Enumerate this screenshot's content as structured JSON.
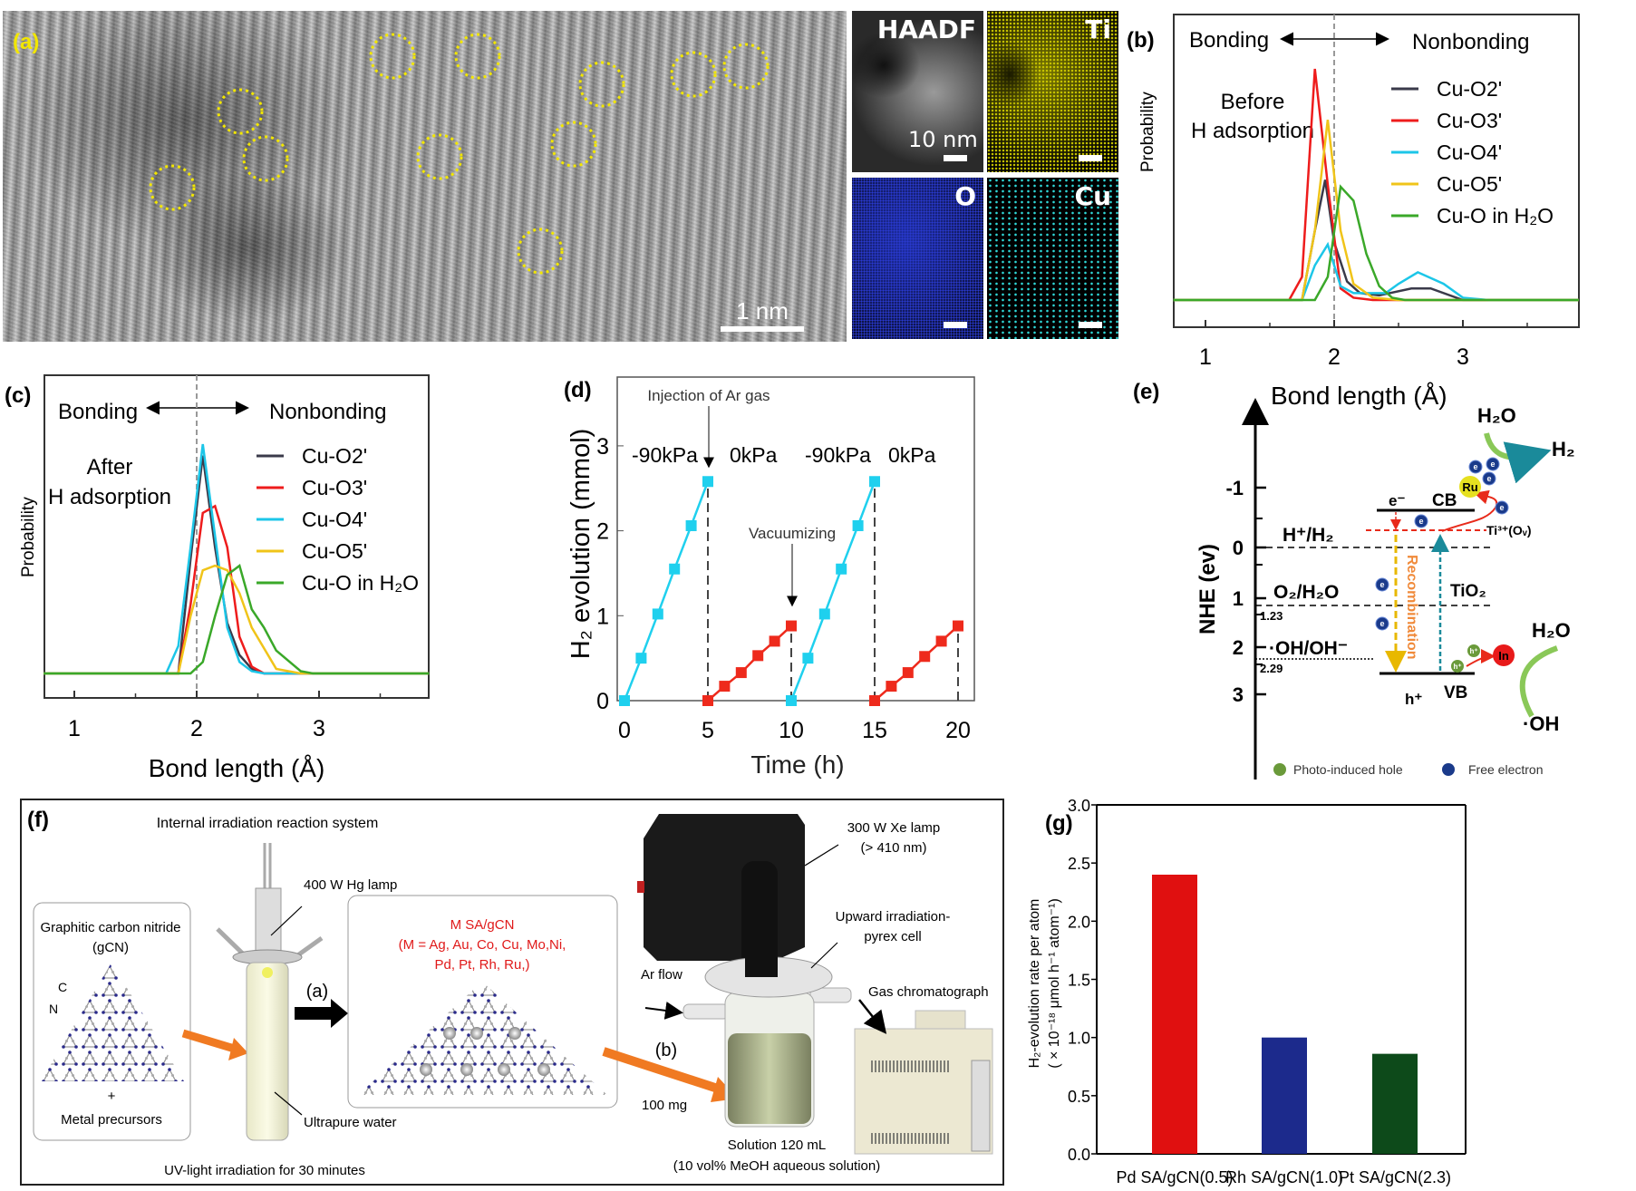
{
  "panel_a": {
    "label": "(a)",
    "scale_bar": "1 nm",
    "eds": {
      "haadf": "HAADF",
      "ti": "Ti",
      "o": "O",
      "cu": "Cu",
      "scale": "10 nm"
    },
    "colors": {
      "circle": "#f2e600",
      "label": "#f2e600",
      "ti": "#d8d600",
      "o": "#1a2fb0",
      "cu": "#2fd8d8"
    }
  },
  "chart_data": [
    {
      "id": "b",
      "type": "line",
      "panel_label": "(b)",
      "xlabel": "Bond length (Å)",
      "ylabel": "Probability",
      "xlim": [
        0.75,
        3.9
      ],
      "xticks": [
        "1",
        "2",
        "3"
      ],
      "annotation_left": "Bonding",
      "annotation_right": "Nonbonding",
      "state": [
        "Before",
        "H adsorption"
      ],
      "reference_line_x": 2,
      "legend": "top-right",
      "series": [
        {
          "name": "Cu-O2'",
          "color": "#3a3a4a",
          "x": [
            0.75,
            1.75,
            1.85,
            1.93,
            2.0,
            2.1,
            2.2,
            2.35,
            2.6,
            2.75,
            3.0,
            3.9
          ],
          "y": [
            0,
            0,
            0.3,
            0.52,
            0.25,
            0.08,
            0.03,
            0.02,
            0.05,
            0.05,
            0,
            0
          ]
        },
        {
          "name": "Cu-O3'",
          "color": "#ee1c1c",
          "x": [
            0.75,
            1.65,
            1.75,
            1.85,
            1.95,
            2.05,
            2.15,
            2.3,
            3.9
          ],
          "y": [
            0,
            0,
            0.1,
            1.0,
            0.5,
            0.05,
            0.01,
            0,
            0
          ]
        },
        {
          "name": "Cu-O4'",
          "color": "#1cc6e8",
          "x": [
            0.75,
            1.75,
            1.85,
            1.95,
            2.05,
            2.15,
            2.4,
            2.5,
            2.65,
            2.85,
            3.0,
            3.2,
            3.9
          ],
          "y": [
            0,
            0,
            0.15,
            0.24,
            0.06,
            0.03,
            0.03,
            0.07,
            0.12,
            0.07,
            0.01,
            0,
            0
          ]
        },
        {
          "name": "Cu-O5'",
          "color": "#f0c419",
          "x": [
            0.75,
            1.75,
            1.85,
            1.95,
            2.05,
            2.15,
            2.3,
            2.5,
            3.9
          ],
          "y": [
            0,
            0,
            0.3,
            0.78,
            0.3,
            0.07,
            0.01,
            0,
            0
          ]
        },
        {
          "name": "Cu-O in H₂O",
          "color": "#3aa829",
          "x": [
            0.75,
            1.85,
            1.95,
            2.05,
            2.15,
            2.25,
            2.35,
            2.45,
            2.55,
            3.9
          ],
          "y": [
            0,
            0,
            0.1,
            0.49,
            0.43,
            0.2,
            0.06,
            0.01,
            0,
            0
          ]
        }
      ]
    },
    {
      "id": "c",
      "type": "line",
      "panel_label": "(c)",
      "xlabel": "Bond length (Å)",
      "ylabel": "Probability",
      "xlim": [
        0.75,
        3.9
      ],
      "xticks": [
        "1",
        "2",
        "3"
      ],
      "annotation_left": "Bonding",
      "annotation_right": "Nonbonding",
      "state": [
        "After",
        "H adsorption"
      ],
      "reference_line_x": 2,
      "legend": "top-right",
      "series": [
        {
          "name": "Cu-O2'",
          "color": "#3a3a4a",
          "x": [
            0.75,
            1.85,
            1.95,
            2.05,
            2.15,
            2.25,
            2.35,
            2.45,
            2.55,
            3.9
          ],
          "y": [
            0,
            0,
            0.5,
            0.95,
            0.55,
            0.22,
            0.08,
            0.02,
            0,
            0
          ]
        },
        {
          "name": "Cu-O3'",
          "color": "#ee1c1c",
          "x": [
            0.75,
            1.85,
            1.95,
            2.05,
            2.15,
            2.25,
            2.35,
            2.45,
            2.55,
            3.9
          ],
          "y": [
            0,
            0,
            0.3,
            0.7,
            0.73,
            0.55,
            0.16,
            0.03,
            0,
            0
          ]
        },
        {
          "name": "Cu-O4'",
          "color": "#1cc6e8",
          "x": [
            0.75,
            1.75,
            1.85,
            1.95,
            2.05,
            2.15,
            2.25,
            2.35,
            2.45,
            2.55,
            3.9
          ],
          "y": [
            0,
            0,
            0.12,
            0.55,
            1.0,
            0.6,
            0.2,
            0.05,
            0.01,
            0,
            0
          ]
        },
        {
          "name": "Cu-O5'",
          "color": "#f0c419",
          "x": [
            0.75,
            1.85,
            1.95,
            2.05,
            2.15,
            2.25,
            2.35,
            2.45,
            2.65,
            2.85,
            3.9
          ],
          "y": [
            0,
            0,
            0.25,
            0.45,
            0.47,
            0.45,
            0.35,
            0.2,
            0.02,
            0,
            0
          ]
        },
        {
          "name": "Cu-O in H₂O",
          "color": "#3aa829",
          "x": [
            0.75,
            1.95,
            2.05,
            2.15,
            2.25,
            2.35,
            2.45,
            2.55,
            2.65,
            2.85,
            2.95,
            3.9
          ],
          "y": [
            0,
            0,
            0.05,
            0.25,
            0.43,
            0.47,
            0.28,
            0.2,
            0.1,
            0.01,
            0,
            0
          ]
        }
      ]
    },
    {
      "id": "d",
      "type": "line",
      "panel_label": "(d)",
      "xlabel": "Time (h)",
      "ylabel": "H₂ evolution (mmol)",
      "xlim": [
        -0.4,
        21
      ],
      "ylim": [
        0,
        3.8
      ],
      "xticks": [
        0,
        5,
        10,
        15,
        20
      ],
      "yticks": [
        0,
        1,
        2,
        3
      ],
      "annotations": {
        "injection": "Injection of Ar gas",
        "vacuum": "Vacuumizing",
        "p1": "-90kPa",
        "p2": "0kPa",
        "p3": "-90kPa",
        "p4": "0kPa"
      },
      "series": [
        {
          "color": "#1fd0ee",
          "x": [
            0,
            1,
            2,
            3,
            4,
            5
          ],
          "y": [
            0,
            0.5,
            1.02,
            1.55,
            2.06,
            2.58
          ]
        },
        {
          "color": "#ee2a1c",
          "x": [
            5,
            6,
            7,
            8,
            9,
            10
          ],
          "y": [
            0,
            0.17,
            0.33,
            0.53,
            0.7,
            0.88
          ]
        },
        {
          "color": "#1fd0ee",
          "x": [
            10,
            11,
            12,
            13,
            14,
            15
          ],
          "y": [
            0,
            0.5,
            1.02,
            1.55,
            2.06,
            2.58
          ]
        },
        {
          "color": "#ee2a1c",
          "x": [
            15,
            16,
            17,
            18,
            19,
            20
          ],
          "y": [
            0,
            0.17,
            0.33,
            0.52,
            0.7,
            0.88
          ]
        }
      ]
    },
    {
      "id": "g",
      "type": "bar",
      "panel_label": "(g)",
      "categories": [
        "Pd SA/gCN(0.5)",
        "Rh SA/gCN(1.0)",
        "Pt SA/gCN(2.3)"
      ],
      "values": [
        2.4,
        1.0,
        0.86
      ],
      "colors": [
        "#e01010",
        "#1c2a8c",
        "#0d4a1a"
      ],
      "ylabel": [
        "H₂-evolution rate per atom",
        "( × 10⁻¹⁸ μmol h⁻¹ atom⁻¹)"
      ],
      "ylim": [
        0,
        3.0
      ],
      "yticks": [
        "0.0",
        "0.5",
        "1.0",
        "1.5",
        "2.0",
        "2.5",
        "3.0"
      ]
    }
  ],
  "panel_e": {
    "label": "(e)",
    "axis_label": "NHE (ev)",
    "ticks": [
      "-1",
      "0",
      "1",
      "2",
      "3"
    ],
    "levels": {
      "h_h2": "H⁺/H₂",
      "o2_h2o": "O₂/H₂O",
      "oh": "·OH/OH⁻",
      "v123": "1.23",
      "v229": "2.29"
    },
    "cb": "CB",
    "vb": "VB",
    "e_minus": "e⁻",
    "h_plus": "h⁺",
    "ti3": "Ti³⁺(Oᵥ)",
    "tio2": "TiO₂",
    "recombination": "Recombination",
    "ru": "Ru",
    "in": "In",
    "e": "e",
    "h": "h⁺",
    "h2o_top": "H₂O",
    "h2": "H₂",
    "h2o_bottom": "H₂O",
    "oh_product": "·OH",
    "legend_hole": "Photo-induced hole",
    "legend_electron": "Free electron"
  },
  "panel_f": {
    "label": "(f)",
    "title": "Internal irradiation reaction system",
    "gcn_title": "Graphitic carbon nitride",
    "gcn_abbr": "(gCN)",
    "atom_c": "C",
    "atom_n": "N",
    "plus": "+",
    "metal": "Metal precursors",
    "lamp": "400 W Hg lamp",
    "water": "Ultrapure water",
    "uv": "UV-light irradiation for 30 minutes",
    "step_a": "(a)",
    "msa_title": "M SA/gCN",
    "msa_line1": "(M = Ag, Au, Co, Cu, Mo,Ni,",
    "msa_line2": "Pd, Pt, Rh, Ru,)",
    "xe_lamp": "300 W Xe lamp",
    "xe_filter": "(> 410 nm)",
    "cell1": "Upward irradiation-",
    "cell2": "pyrex cell",
    "ar": "Ar flow",
    "step_b": "(b)",
    "mass": "100 mg",
    "gc": "Gas chromatograph",
    "sol1": "Solution 120 mL",
    "sol2": "(10 vol% MeOH aqueous solution)",
    "colors": {
      "red_text": "#e01a1a",
      "orange_arrow": "#f07a22"
    }
  }
}
